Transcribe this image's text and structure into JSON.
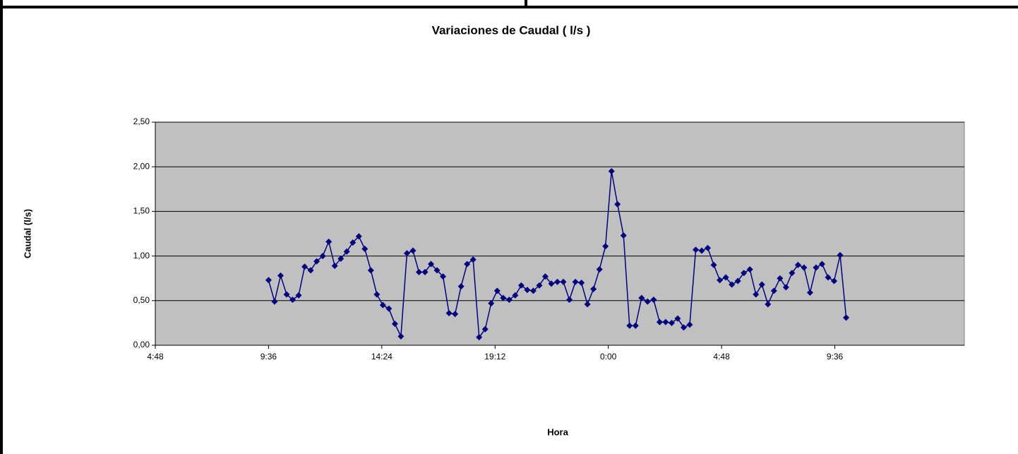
{
  "chart_data": {
    "type": "line",
    "title": "Variaciones de Caudal ( l/s )",
    "x_label": "Hora",
    "y_label": "Caudal (l/s)",
    "x": [
      9.6,
      9.855,
      10.11,
      10.365,
      10.62,
      10.875,
      11.13,
      11.385,
      11.64,
      11.895,
      12.15,
      12.405,
      12.66,
      12.915,
      13.17,
      13.425,
      13.68,
      13.935,
      14.19,
      14.445,
      14.7,
      14.955,
      15.21,
      15.465,
      15.72,
      15.975,
      16.23,
      16.485,
      16.74,
      16.995,
      17.25,
      17.505,
      17.76,
      18.015,
      18.27,
      18.525,
      18.78,
      19.035,
      19.29,
      19.545,
      19.8,
      20.055,
      20.31,
      20.565,
      20.82,
      21.075,
      21.33,
      21.585,
      21.84,
      22.095,
      22.35,
      22.605,
      22.86,
      23.115,
      23.37,
      23.625,
      23.88,
      24.135,
      24.39,
      24.645,
      24.9,
      25.155,
      25.41,
      25.665,
      25.92,
      26.175,
      26.43,
      26.685,
      26.94,
      27.195,
      27.45,
      27.705,
      27.96,
      28.215,
      28.47,
      28.725,
      28.98,
      29.235,
      29.49,
      29.745,
      30.0,
      30.255,
      30.51,
      30.765,
      31.02,
      31.275,
      31.53,
      31.785,
      32.04,
      32.295,
      32.55,
      32.805,
      33.06,
      33.315,
      33.57,
      33.825,
      34.08
    ],
    "series": [
      {
        "color": "#000080",
        "values": [
          0.73,
          0.49,
          0.78,
          0.57,
          0.51,
          0.56,
          0.88,
          0.84,
          0.94,
          1.0,
          1.16,
          0.89,
          0.97,
          1.05,
          1.15,
          1.22,
          1.08,
          0.84,
          0.57,
          0.45,
          0.41,
          0.24,
          0.1,
          1.03,
          1.06,
          0.82,
          0.82,
          0.91,
          0.84,
          0.77,
          0.36,
          0.35,
          0.66,
          0.91,
          0.96,
          0.09,
          0.18,
          0.47,
          0.61,
          0.53,
          0.51,
          0.56,
          0.67,
          0.62,
          0.61,
          0.67,
          0.77,
          0.69,
          0.71,
          0.71,
          0.51,
          0.71,
          0.7,
          0.46,
          0.63,
          0.85,
          1.11,
          1.95,
          1.58,
          1.23,
          0.22,
          0.22,
          0.53,
          0.49,
          0.51,
          0.26,
          0.26,
          0.25,
          0.3,
          0.2,
          0.23,
          1.07,
          1.06,
          1.09,
          0.9,
          0.73,
          0.76,
          0.68,
          0.72,
          0.81,
          0.85,
          0.57,
          0.68,
          0.46,
          0.61,
          0.75,
          0.65,
          0.81,
          0.9,
          0.87,
          0.59,
          0.87,
          0.91,
          0.76,
          0.72,
          1.01,
          0.31
        ]
      }
    ],
    "xlim": [
      4.8,
      39.09
    ],
    "xticks": [
      {
        "value": 4.8,
        "label": "4:48"
      },
      {
        "value": 9.6,
        "label": "9:36"
      },
      {
        "value": 14.4,
        "label": "14:24"
      },
      {
        "value": 19.2,
        "label": "19:12"
      },
      {
        "value": 24,
        "label": "0:00"
      },
      {
        "value": 28.8,
        "label": "4:48"
      },
      {
        "value": 33.6,
        "label": "9:36"
      }
    ],
    "ylim": [
      0,
      2.5
    ],
    "yticks": [
      {
        "value": 0,
        "label": "0,00"
      },
      {
        "value": 0.5,
        "label": "0,50"
      },
      {
        "value": 1,
        "label": "1,00"
      },
      {
        "value": 1.5,
        "label": "1,50"
      },
      {
        "value": 2,
        "label": "2,00"
      },
      {
        "value": 2.5,
        "label": "2,50"
      }
    ],
    "grid": true,
    "plot_background": "#c0c0c0"
  }
}
